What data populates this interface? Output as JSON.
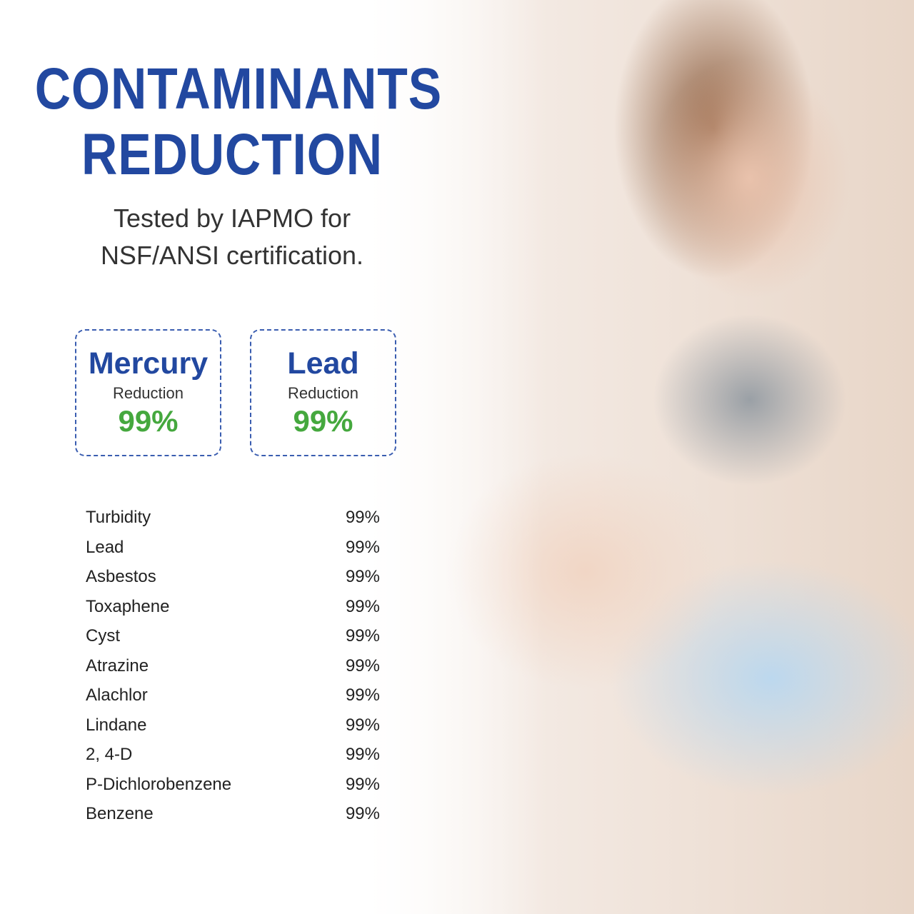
{
  "title_line1": "CONTAMINANTS",
  "title_line2": "REDUCTION",
  "subtitle_line1": "Tested by IAPMO for",
  "subtitle_line2": "NSF/ANSI certification.",
  "highlights": [
    {
      "name": "Mercury",
      "label": "Reduction",
      "value": "99%"
    },
    {
      "name": "Lead",
      "label": "Reduction",
      "value": "99%"
    }
  ],
  "contaminants": [
    {
      "name": "Turbidity",
      "value": "99%"
    },
    {
      "name": "Lead",
      "value": "99%"
    },
    {
      "name": "Asbestos",
      "value": "99%"
    },
    {
      "name": "Toxaphene",
      "value": "99%"
    },
    {
      "name": "Cyst",
      "value": "99%"
    },
    {
      "name": "Atrazine",
      "value": "99%"
    },
    {
      "name": "Alachlor",
      "value": "99%"
    },
    {
      "name": "Lindane",
      "value": "99%"
    },
    {
      "name": "2, 4-D",
      "value": "99%"
    },
    {
      "name": "P-Dichlorobenzene",
      "value": "99%"
    },
    {
      "name": "Benzene",
      "value": "99%"
    }
  ],
  "colors": {
    "title": "#2248a0",
    "percent": "#45a83e"
  }
}
